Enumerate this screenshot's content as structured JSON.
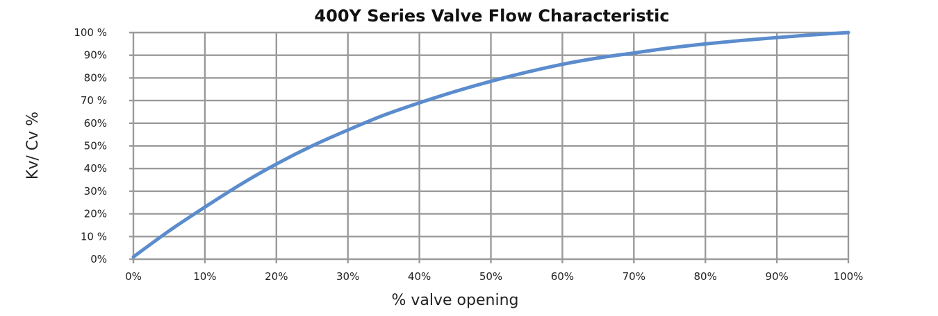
{
  "chart_data": {
    "type": "line",
    "title": "400Y Series Valve Flow Characteristic",
    "xlabel": "% valve opening",
    "ylabel": "Kv/ Cv %",
    "x_tick_labels": [
      "0%",
      "10%",
      "20%",
      "30%",
      "40%",
      "50%",
      "60%",
      "70%",
      "80%",
      "90%",
      "100%"
    ],
    "y_tick_labels": [
      "0%",
      "10 %",
      "20%",
      "30%",
      "40%",
      "50%",
      "60%",
      "70 %",
      "80%",
      "90%",
      "100 %"
    ],
    "xlim": [
      0,
      100
    ],
    "ylim": [
      0,
      100
    ],
    "grid": true,
    "series": [
      {
        "color": "#5b8ccd",
        "x": [
          0,
          5,
          10,
          15,
          20,
          25,
          30,
          35,
          40,
          45,
          50,
          55,
          60,
          65,
          70,
          75,
          80,
          85,
          90,
          95,
          100
        ],
        "y": [
          1,
          12.5,
          23,
          33,
          42,
          50,
          57,
          63.5,
          69,
          74,
          78.5,
          82.5,
          86,
          88.8,
          91,
          93.2,
          95,
          96.5,
          97.8,
          99,
          100
        ]
      }
    ]
  }
}
